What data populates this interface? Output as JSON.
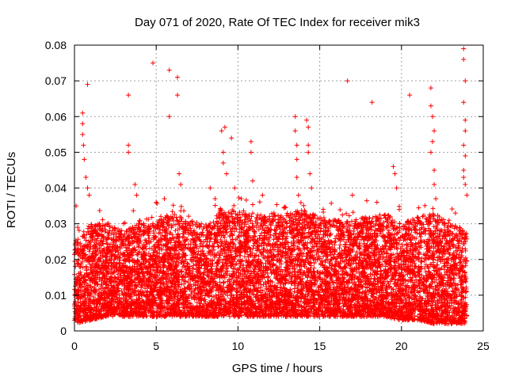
{
  "chart_data": {
    "type": "scatter",
    "title": "Day 071 of 2020, Rate Of TEC Index for receiver mik3",
    "xlabel": "GPS time / hours",
    "ylabel": "ROTI / TECUs",
    "xlim": [
      0,
      25
    ],
    "ylim": [
      0,
      0.08
    ],
    "x_ticks": [
      0,
      5,
      10,
      15,
      20,
      25
    ],
    "y_ticks": [
      0,
      0.01,
      0.02,
      0.03,
      0.04,
      0.05,
      0.06,
      0.07,
      0.08
    ],
    "x_tick_labels": [
      "0",
      "5",
      "10",
      "15",
      "20",
      "25"
    ],
    "y_tick_labels": [
      "0",
      "0.01",
      "0.02",
      "0.03",
      "0.04",
      "0.05",
      "0.06",
      "0.07",
      "0.08"
    ],
    "grid": true,
    "marker": "+",
    "color": "#ff0000",
    "series": [
      {
        "name": "ROTI",
        "note": "dense cloud of several thousand points, roughly 0.002–0.03 TECU across 0–24 h; sampled below",
        "points": [
          [
            0.1,
            0.035
          ],
          [
            0.2,
            0.029
          ],
          [
            0.5,
            0.061
          ],
          [
            0.5,
            0.058
          ],
          [
            0.5,
            0.055
          ],
          [
            0.55,
            0.052
          ],
          [
            0.6,
            0.048
          ],
          [
            0.7,
            0.043
          ],
          [
            0.8,
            0.069
          ],
          [
            0.8,
            0.04
          ],
          [
            0.9,
            0.038
          ],
          [
            3.3,
            0.066
          ],
          [
            3.3,
            0.052
          ],
          [
            3.3,
            0.05
          ],
          [
            3.7,
            0.041
          ],
          [
            3.8,
            0.038
          ],
          [
            4.8,
            0.075
          ],
          [
            5.0,
            0.036
          ],
          [
            5.5,
            0.037
          ],
          [
            5.8,
            0.073
          ],
          [
            5.8,
            0.06
          ],
          [
            6.3,
            0.071
          ],
          [
            6.3,
            0.066
          ],
          [
            6.4,
            0.044
          ],
          [
            6.5,
            0.041
          ],
          [
            8.3,
            0.04
          ],
          [
            8.6,
            0.037
          ],
          [
            9.0,
            0.056
          ],
          [
            9.1,
            0.05
          ],
          [
            9.2,
            0.057
          ],
          [
            9.1,
            0.047
          ],
          [
            9.3,
            0.044
          ],
          [
            9.6,
            0.054
          ],
          [
            9.8,
            0.04
          ],
          [
            10.2,
            0.037
          ],
          [
            10.8,
            0.053
          ],
          [
            10.8,
            0.05
          ],
          [
            10.9,
            0.042
          ],
          [
            11.5,
            0.038
          ],
          [
            13.5,
            0.06
          ],
          [
            13.5,
            0.056
          ],
          [
            13.6,
            0.052
          ],
          [
            13.6,
            0.048
          ],
          [
            13.6,
            0.043
          ],
          [
            13.7,
            0.038
          ],
          [
            14.2,
            0.059
          ],
          [
            14.3,
            0.057
          ],
          [
            14.3,
            0.052
          ],
          [
            14.3,
            0.05
          ],
          [
            14.4,
            0.044
          ],
          [
            14.5,
            0.04
          ],
          [
            16.7,
            0.07
          ],
          [
            17.0,
            0.038
          ],
          [
            18.2,
            0.064
          ],
          [
            18.5,
            0.036
          ],
          [
            19.5,
            0.046
          ],
          [
            19.6,
            0.044
          ],
          [
            19.7,
            0.04
          ],
          [
            20.5,
            0.066
          ],
          [
            21.8,
            0.068
          ],
          [
            21.8,
            0.063
          ],
          [
            21.9,
            0.06
          ],
          [
            22.0,
            0.056
          ],
          [
            21.9,
            0.053
          ],
          [
            21.8,
            0.05
          ],
          [
            22.0,
            0.045
          ],
          [
            22.0,
            0.041
          ],
          [
            22.1,
            0.037
          ],
          [
            23.3,
            0.033
          ],
          [
            23.8,
            0.079
          ],
          [
            23.8,
            0.076
          ],
          [
            23.9,
            0.07
          ],
          [
            23.8,
            0.064
          ],
          [
            23.9,
            0.059
          ],
          [
            23.9,
            0.056
          ],
          [
            23.8,
            0.052
          ],
          [
            23.9,
            0.049
          ],
          [
            23.8,
            0.045
          ],
          [
            23.8,
            0.043
          ],
          [
            23.9,
            0.041
          ],
          [
            24.0,
            0.038
          ]
        ]
      }
    ],
    "density_profile": {
      "description": "approximate upper envelope (95th pct) of the dense point cloud vs hour",
      "hours": [
        0,
        1,
        2,
        3,
        4,
        5,
        6,
        7,
        8,
        9,
        10,
        11,
        12,
        13,
        14,
        15,
        16,
        17,
        18,
        19,
        20,
        21,
        22,
        23,
        24
      ],
      "upper": [
        0.025,
        0.03,
        0.03,
        0.028,
        0.031,
        0.032,
        0.033,
        0.031,
        0.03,
        0.034,
        0.034,
        0.033,
        0.032,
        0.033,
        0.034,
        0.032,
        0.031,
        0.031,
        0.032,
        0.033,
        0.03,
        0.032,
        0.033,
        0.03,
        0.028
      ],
      "lower": [
        0.002,
        0.003,
        0.004,
        0.004,
        0.004,
        0.004,
        0.004,
        0.004,
        0.004,
        0.004,
        0.004,
        0.004,
        0.004,
        0.004,
        0.004,
        0.004,
        0.004,
        0.004,
        0.004,
        0.004,
        0.003,
        0.003,
        0.002,
        0.002,
        0.002
      ]
    }
  }
}
